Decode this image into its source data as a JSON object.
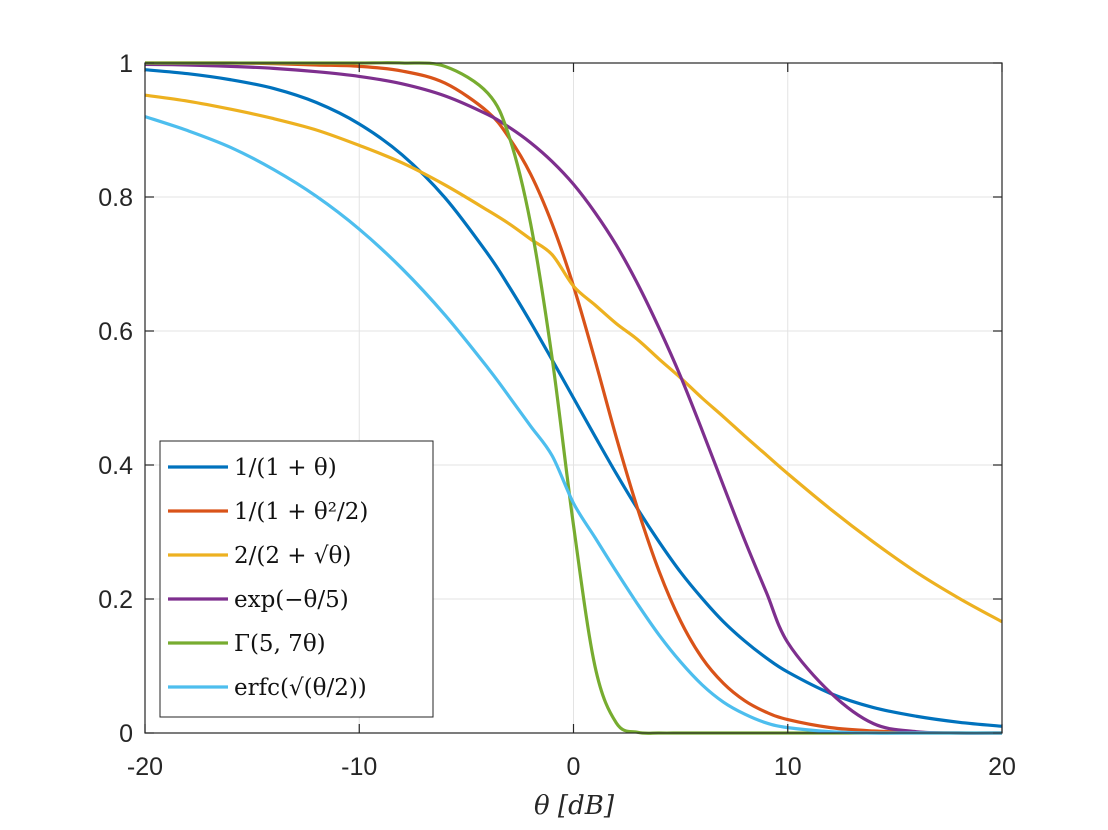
{
  "chart_data": {
    "type": "line",
    "title": "",
    "xlabel": "θ [dB]",
    "ylabel": "",
    "xlim": [
      -20,
      20
    ],
    "ylim": [
      0,
      1
    ],
    "grid": true,
    "legend_location": "bottom-left",
    "x_ticks": [
      -20,
      -10,
      0,
      10,
      20
    ],
    "x_tick_labels": [
      "-20",
      "-10",
      "0",
      "10",
      "20"
    ],
    "y_ticks": [
      0,
      0.2,
      0.4,
      0.6,
      0.8,
      1
    ],
    "y_tick_labels": [
      "0",
      "0.2",
      "0.4",
      "0.6",
      "0.8",
      "1"
    ],
    "x": [
      -20,
      -18,
      -16,
      -14,
      -12,
      -10,
      -8,
      -6,
      -4,
      -3,
      -2,
      -1,
      0,
      1,
      2,
      3,
      4,
      5,
      6,
      7,
      8,
      9,
      10,
      12,
      14,
      16,
      18,
      20
    ],
    "series": [
      {
        "name": "1/(1 + θ)",
        "color": "#0072BD",
        "values": [
          0.99,
          0.984,
          0.975,
          0.962,
          0.941,
          0.909,
          0.863,
          0.799,
          0.715,
          0.666,
          0.613,
          0.557,
          0.5,
          0.443,
          0.387,
          0.334,
          0.285,
          0.24,
          0.201,
          0.166,
          0.137,
          0.112,
          0.091,
          0.059,
          0.038,
          0.025,
          0.016,
          0.01
        ]
      },
      {
        "name": "1/(1 + θ²/2)",
        "color": "#D95319",
        "values": [
          1.0,
          1.0,
          1.0,
          0.999,
          0.997,
          0.995,
          0.988,
          0.97,
          0.927,
          0.888,
          0.834,
          0.76,
          0.667,
          0.557,
          0.441,
          0.334,
          0.241,
          0.167,
          0.112,
          0.074,
          0.048,
          0.031,
          0.02,
          0.008,
          0.003,
          0.001,
          0.0,
          0.0
        ]
      },
      {
        "name": "2/(2 + √θ)",
        "color": "#EDB120",
        "values": [
          0.952,
          0.943,
          0.931,
          0.917,
          0.9,
          0.877,
          0.851,
          0.818,
          0.78,
          0.76,
          0.737,
          0.714,
          0.667,
          0.639,
          0.611,
          0.587,
          0.558,
          0.53,
          0.5,
          0.472,
          0.443,
          0.415,
          0.387,
          0.334,
          0.285,
          0.24,
          0.201,
          0.166
        ]
      },
      {
        "name": "exp(−θ/5)",
        "color": "#7E2F8E",
        "values": [
          0.998,
          0.997,
          0.995,
          0.992,
          0.987,
          0.98,
          0.969,
          0.951,
          0.923,
          0.904,
          0.881,
          0.853,
          0.819,
          0.777,
          0.728,
          0.67,
          0.604,
          0.532,
          0.452,
          0.369,
          0.287,
          0.21,
          0.135,
          0.06,
          0.014,
          0.002,
          0.0,
          0.0
        ]
      },
      {
        "name": "Γ(5, 7θ)",
        "color": "#77AC30",
        "values": [
          1.0,
          1.0,
          1.0,
          1.0,
          1.0,
          1.0,
          1.0,
          0.995,
          0.955,
          0.89,
          0.76,
          0.56,
          0.31,
          0.1,
          0.015,
          0.001,
          0.0,
          0.0,
          0.0,
          0.0,
          0.0,
          0.0,
          0.0,
          0.0,
          0.0,
          0.0,
          0.0,
          0.0
        ]
      },
      {
        "name": "erfc(√(θ/2))",
        "color": "#4DBEEE",
        "values": [
          0.92,
          0.899,
          0.874,
          0.841,
          0.801,
          0.752,
          0.693,
          0.624,
          0.545,
          0.502,
          0.458,
          0.414,
          0.343,
          0.292,
          0.241,
          0.192,
          0.146,
          0.106,
          0.072,
          0.046,
          0.028,
          0.015,
          0.008,
          0.002,
          0.0,
          0.0,
          0.0,
          0.0
        ]
      }
    ]
  }
}
